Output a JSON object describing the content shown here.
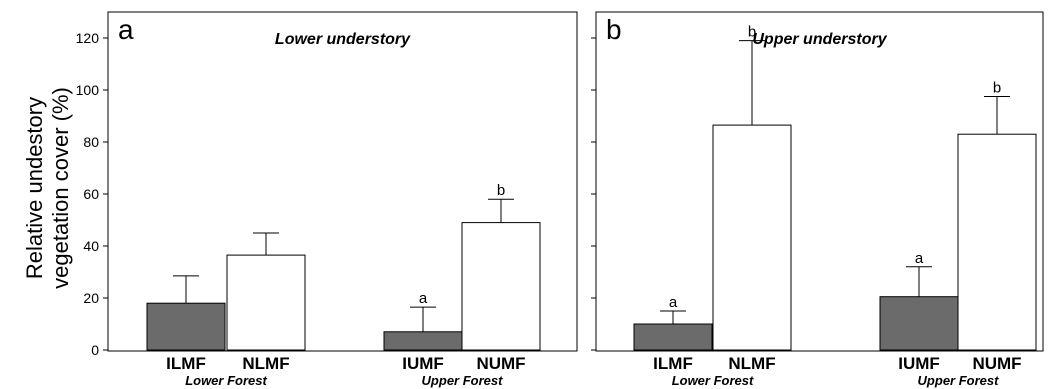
{
  "chart_data": [
    {
      "type": "bar",
      "panel": "a",
      "title": "Lower understory",
      "ylabel": [
        "Relative undestory",
        "vegetation cover (%)"
      ],
      "ylim": [
        0,
        130
      ],
      "yticks": [
        0,
        20,
        40,
        60,
        80,
        100,
        120
      ],
      "categories": [
        "ILMF",
        "NLMF",
        "IUMF",
        "NUMF"
      ],
      "groups": [
        "Lower Forest",
        "Upper Forest"
      ],
      "values": [
        18,
        36.5,
        7,
        49
      ],
      "errors": [
        10.5,
        8.5,
        9.5,
        9
      ],
      "significance": [
        "",
        "",
        "a",
        "b"
      ],
      "fills": [
        "#6b6b6b",
        "#ffffff",
        "#6b6b6b",
        "#ffffff"
      ]
    },
    {
      "type": "bar",
      "panel": "b",
      "title": "Upper understory",
      "ylim": [
        0,
        130
      ],
      "yticks": [
        0,
        20,
        40,
        60,
        80,
        100,
        120
      ],
      "categories": [
        "ILMF",
        "NLMF",
        "IUMF",
        "NUMF"
      ],
      "groups": [
        "Lower Forest",
        "Upper Forest"
      ],
      "values": [
        10,
        86.5,
        20.5,
        83
      ],
      "errors": [
        5,
        32.5,
        11.5,
        14.5
      ],
      "significance": [
        "a",
        "b",
        "a",
        "b"
      ],
      "fills": [
        "#6b6b6b",
        "#ffffff",
        "#6b6b6b",
        "#ffffff"
      ]
    }
  ]
}
